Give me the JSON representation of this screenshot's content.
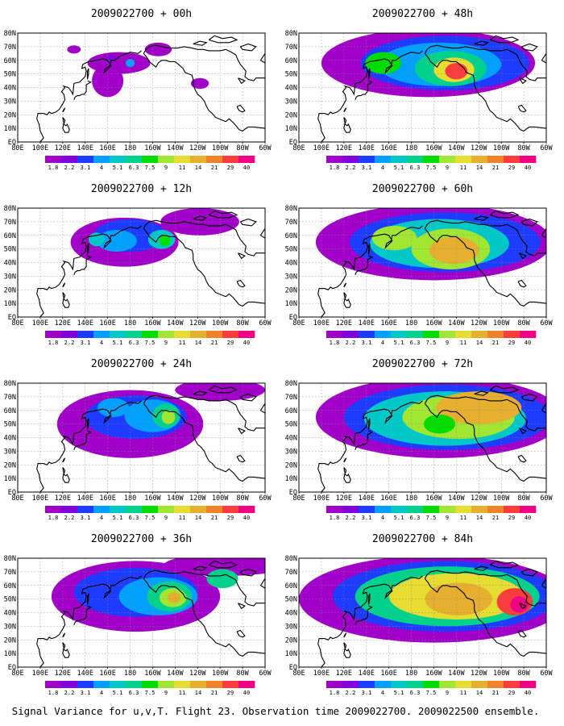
{
  "figure": {
    "caption": "Signal Variance for u,v,T. Flight 23. Observation time 2009022700. 2009022500 ensemble."
  },
  "colorbar": {
    "labels": [
      "1.8",
      "2.2",
      "3.1",
      "4",
      "5.1",
      "6.3",
      "7.5",
      "9",
      "11",
      "14",
      "21",
      "29",
      "40"
    ],
    "colors": [
      "#a000c8",
      "#8200dc",
      "#1e3cff",
      "#00a0ff",
      "#00c8c8",
      "#00d28c",
      "#00dc00",
      "#a0e632",
      "#e6dc32",
      "#e6af2d",
      "#f08228",
      "#fa3c3c",
      "#f00082"
    ]
  },
  "axes": {
    "x_labels": [
      "80E",
      "100E",
      "120E",
      "140E",
      "160E",
      "180",
      "160W",
      "140W",
      "120W",
      "100W",
      "80W",
      "60W"
    ],
    "y_labels": [
      "80N",
      "70N",
      "60N",
      "50N",
      "40N",
      "30N",
      "20N",
      "10N",
      "EQ"
    ]
  },
  "panels": [
    {
      "title": "2009022700 + 00h",
      "blobs": [
        {
          "lon": 170,
          "lat": 58,
          "rx": 28,
          "ry": 8,
          "level": 0
        },
        {
          "lon": 160,
          "lat": 45,
          "rx": 14,
          "ry": 12,
          "level": 0
        },
        {
          "lon": 205,
          "lat": 68,
          "rx": 12,
          "ry": 5,
          "level": 0
        },
        {
          "lon": 242,
          "lat": 43,
          "rx": 8,
          "ry": 4,
          "level": 0
        },
        {
          "lon": 130,
          "lat": 68,
          "rx": 6,
          "ry": 3,
          "level": 0
        },
        {
          "lon": 163,
          "lat": 61,
          "rx": 5,
          "ry": 3,
          "level": 1
        },
        {
          "lon": 180,
          "lat": 58,
          "rx": 4,
          "ry": 3,
          "level": 3
        }
      ]
    },
    {
      "title": "2009022700 + 12h",
      "blobs": [
        {
          "lon": 175,
          "lat": 55,
          "rx": 48,
          "ry": 18,
          "level": 0
        },
        {
          "lon": 242,
          "lat": 70,
          "rx": 35,
          "ry": 10,
          "level": 0
        },
        {
          "lon": 180,
          "lat": 60,
          "rx": 32,
          "ry": 12,
          "level": 2
        },
        {
          "lon": 168,
          "lat": 56,
          "rx": 18,
          "ry": 8,
          "level": 3
        },
        {
          "lon": 208,
          "lat": 57,
          "rx": 12,
          "ry": 7,
          "level": 4
        },
        {
          "lon": 211,
          "lat": 56,
          "rx": 5,
          "ry": 4,
          "level": 6
        },
        {
          "lon": 150,
          "lat": 57,
          "rx": 7,
          "ry": 5,
          "level": 4
        }
      ]
    },
    {
      "title": "2009022700 + 24h",
      "blobs": [
        {
          "lon": 180,
          "lat": 50,
          "rx": 65,
          "ry": 25,
          "level": 0
        },
        {
          "lon": 260,
          "lat": 75,
          "rx": 40,
          "ry": 8,
          "level": 0
        },
        {
          "lon": 185,
          "lat": 55,
          "rx": 45,
          "ry": 16,
          "level": 2
        },
        {
          "lon": 200,
          "lat": 56,
          "rx": 25,
          "ry": 12,
          "level": 3
        },
        {
          "lon": 212,
          "lat": 56,
          "rx": 12,
          "ry": 9,
          "level": 5
        },
        {
          "lon": 214,
          "lat": 55,
          "rx": 6,
          "ry": 5,
          "level": 7
        },
        {
          "lon": 165,
          "lat": 62,
          "rx": 14,
          "ry": 7,
          "level": 3
        }
      ]
    },
    {
      "title": "2009022700 + 36h",
      "blobs": [
        {
          "lon": 185,
          "lat": 52,
          "rx": 75,
          "ry": 26,
          "level": 0
        },
        {
          "lon": 265,
          "lat": 75,
          "rx": 55,
          "ry": 8,
          "level": 0
        },
        {
          "lon": 185,
          "lat": 55,
          "rx": 55,
          "ry": 18,
          "level": 2
        },
        {
          "lon": 205,
          "lat": 52,
          "rx": 35,
          "ry": 14,
          "level": 3
        },
        {
          "lon": 215,
          "lat": 52,
          "rx": 20,
          "ry": 11,
          "level": 5
        },
        {
          "lon": 218,
          "lat": 51,
          "rx": 12,
          "ry": 7,
          "level": 7
        },
        {
          "lon": 219,
          "lat": 51,
          "rx": 6,
          "ry": 4,
          "level": 9
        },
        {
          "lon": 262,
          "lat": 65,
          "rx": 14,
          "ry": 7,
          "level": 5
        }
      ]
    },
    {
      "title": "2009022700 + 48h",
      "blobs": [
        {
          "lon": 195,
          "lat": 58,
          "rx": 95,
          "ry": 25,
          "level": 0
        },
        {
          "lon": 210,
          "lat": 58,
          "rx": 75,
          "ry": 20,
          "level": 2
        },
        {
          "lon": 205,
          "lat": 57,
          "rx": 55,
          "ry": 16,
          "level": 3
        },
        {
          "lon": 215,
          "lat": 54,
          "rx": 32,
          "ry": 13,
          "level": 5
        },
        {
          "lon": 218,
          "lat": 53,
          "rx": 18,
          "ry": 9,
          "level": 8
        },
        {
          "lon": 220,
          "lat": 52,
          "rx": 10,
          "ry": 6,
          "level": 11
        },
        {
          "lon": 155,
          "lat": 58,
          "rx": 16,
          "ry": 8,
          "level": 6
        }
      ]
    },
    {
      "title": "2009022700 + 60h",
      "blobs": [
        {
          "lon": 200,
          "lat": 55,
          "rx": 105,
          "ry": 28,
          "level": 0
        },
        {
          "lon": 210,
          "lat": 55,
          "rx": 85,
          "ry": 22,
          "level": 2
        },
        {
          "lon": 205,
          "lat": 54,
          "rx": 62,
          "ry": 18,
          "level": 4
        },
        {
          "lon": 215,
          "lat": 50,
          "rx": 35,
          "ry": 15,
          "level": 7
        },
        {
          "lon": 218,
          "lat": 49,
          "rx": 22,
          "ry": 10,
          "level": 9
        },
        {
          "lon": 165,
          "lat": 58,
          "rx": 20,
          "ry": 9,
          "level": 7
        }
      ]
    },
    {
      "title": "2009022700 + 72h",
      "blobs": [
        {
          "lon": 205,
          "lat": 55,
          "rx": 110,
          "ry": 30,
          "level": 0
        },
        {
          "lon": 212,
          "lat": 55,
          "rx": 92,
          "ry": 24,
          "level": 2
        },
        {
          "lon": 210,
          "lat": 54,
          "rx": 72,
          "ry": 20,
          "level": 4
        },
        {
          "lon": 222,
          "lat": 55,
          "rx": 50,
          "ry": 16,
          "level": 7
        },
        {
          "lon": 240,
          "lat": 62,
          "rx": 38,
          "ry": 12,
          "level": 9
        },
        {
          "lon": 205,
          "lat": 50,
          "rx": 14,
          "ry": 7,
          "level": 6
        }
      ]
    },
    {
      "title": "2009022700 + 84h",
      "blobs": [
        {
          "lon": 200,
          "lat": 50,
          "rx": 120,
          "ry": 32,
          "level": 0
        },
        {
          "lon": 210,
          "lat": 52,
          "rx": 100,
          "ry": 26,
          "level": 2
        },
        {
          "lon": 212,
          "lat": 52,
          "rx": 82,
          "ry": 22,
          "level": 5
        },
        {
          "lon": 220,
          "lat": 52,
          "rx": 60,
          "ry": 17,
          "level": 8
        },
        {
          "lon": 222,
          "lat": 50,
          "rx": 30,
          "ry": 12,
          "level": 9
        },
        {
          "lon": 272,
          "lat": 48,
          "rx": 16,
          "ry": 10,
          "level": 11
        },
        {
          "lon": 276,
          "lat": 46,
          "rx": 8,
          "ry": 6,
          "level": 12
        }
      ]
    }
  ]
}
